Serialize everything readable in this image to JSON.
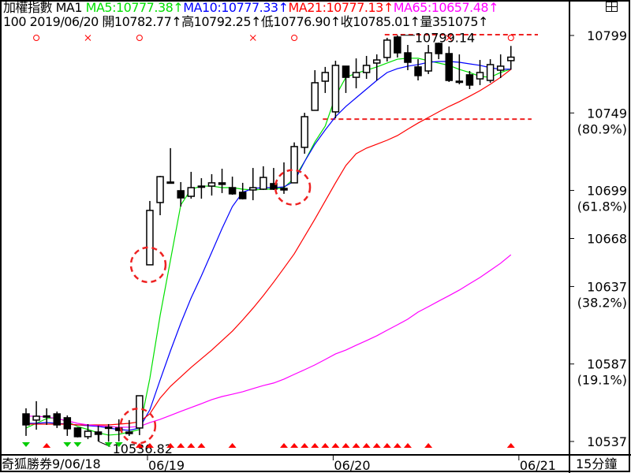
{
  "header": {
    "name": "加權指數",
    "period_label": "MA1",
    "ma5": "MA5:10777.38↑",
    "ma10": "MA10:10777.33↑",
    "ma21": "MA21:10777.13↑",
    "ma65": "MA65:10657.48↑",
    "line2": "100 2019/06/20 開10782.77↑高10792.25↑低10776.90↑收10785.01↑量351075↑"
  },
  "footer": {
    "left": "奇狐勝券9/06/18",
    "timeframe": "15分鐘"
  },
  "colors": {
    "ma5": "#00e000",
    "ma10": "#0000ff",
    "ma21": "#ff0000",
    "ma65": "#ff00ff",
    "annotation": "#ee2222",
    "up_marker": "#ff0000",
    "down_marker": "#00cc00"
  },
  "icons": {
    "window": "window-restore-icon"
  },
  "chart_data": {
    "type": "candlestick",
    "ylim": [
      10537,
      10799
    ],
    "y_ticks": [
      {
        "value": 10799,
        "label": "10799"
      },
      {
        "value": 10749,
        "label": "10749",
        "sub": "(80.9%)"
      },
      {
        "value": 10699,
        "label": "10699",
        "sub": "(61.8%)"
      },
      {
        "value": 10668,
        "label": "10668"
      },
      {
        "value": 10637,
        "label": "10637",
        "sub": "(38.2%)"
      },
      {
        "value": 10587,
        "label": "10587",
        "sub": "(19.1%)"
      },
      {
        "value": 10537,
        "label": "10537"
      }
    ],
    "x_ticks": [
      {
        "index": 13,
        "label": "06/19"
      },
      {
        "index": 31,
        "label": "06/20"
      },
      {
        "index": 49,
        "label": "06/21"
      }
    ],
    "candles": [
      [
        10554.8,
        10558.4,
        10540.6,
        10547.7
      ],
      [
        10550.8,
        10563.0,
        10544.6,
        10553.3
      ],
      [
        10553.5,
        10558.4,
        10547.7,
        10553.1
      ],
      [
        10554.8,
        10556.3,
        10545.7,
        10547.7
      ],
      [
        10552.3,
        10553.8,
        10540.6,
        10545.2
      ],
      [
        10545.7,
        10546.2,
        10539.6,
        10540.1
      ],
      [
        10540.1,
        10548.2,
        10538.5,
        10543.6
      ],
      [
        10543.1,
        10547.2,
        10537.0,
        10541.6
      ],
      [
        10546.2,
        10548.2,
        10536.82,
        10545.7
      ],
      [
        10545.7,
        10551.3,
        10537.0,
        10544.1
      ],
      [
        10543.1,
        10550.8,
        10540.6,
        10542.1
      ],
      [
        10545.7,
        10566.5,
        10541.1,
        10566.5
      ],
      [
        10651.0,
        10692.2,
        10651.0,
        10686.1
      ],
      [
        10691.2,
        10708.4,
        10683.0,
        10707.9
      ],
      [
        10704.4,
        10726.3,
        10703.4,
        10704.4
      ],
      [
        10698.8,
        10704.4,
        10688.6,
        10694.2
      ],
      [
        10695.2,
        10711.0,
        10693.7,
        10700.8
      ],
      [
        10701.3,
        10706.9,
        10693.7,
        10701.8
      ],
      [
        10701.8,
        10709.5,
        10695.7,
        10703.9
      ],
      [
        10703.9,
        10713.0,
        10697.3,
        10702.9
      ],
      [
        10700.8,
        10707.9,
        10696.2,
        10696.8
      ],
      [
        10697.8,
        10703.9,
        10693.2,
        10693.7
      ],
      [
        10699.3,
        10713.5,
        10692.7,
        10700.8
      ],
      [
        10699.8,
        10714.6,
        10699.3,
        10707.4
      ],
      [
        10703.4,
        10713.5,
        10699.3,
        10699.8
      ],
      [
        10700.3,
        10717.1,
        10696.8,
        10699.3
      ],
      [
        10703.9,
        10730.0,
        10703.9,
        10727.3
      ],
      [
        10726.8,
        10749.1,
        10722.7,
        10746.6
      ],
      [
        10750.7,
        10776.6,
        10750.7,
        10768.5
      ],
      [
        10769.5,
        10778.7,
        10761.9,
        10775.1
      ],
      [
        10749.7,
        10782.7,
        10745.6,
        10779.7
      ],
      [
        10779.2,
        10779.2,
        10761.9,
        10772.0
      ],
      [
        10772.0,
        10784.2,
        10764.9,
        10775.1
      ],
      [
        10775.1,
        10785.8,
        10771.0,
        10779.7
      ],
      [
        10781.2,
        10786.8,
        10770.0,
        10783.2
      ],
      [
        10784.8,
        10797.5,
        10782.2,
        10796.0
      ],
      [
        10798.0,
        10799.14,
        10784.8,
        10787.8
      ],
      [
        10787.8,
        10792.9,
        10776.6,
        10781.7
      ],
      [
        10778.7,
        10783.7,
        10770.0,
        10773.1
      ],
      [
        10776.1,
        10792.9,
        10774.1,
        10787.8
      ],
      [
        10793.9,
        10794.4,
        10783.7,
        10787.3
      ],
      [
        10787.3,
        10791.9,
        10769.0,
        10770.0
      ],
      [
        10769.5,
        10786.8,
        10767.5,
        10769.2
      ],
      [
        10773.6,
        10776.1,
        10764.4,
        10767.0
      ],
      [
        10771.0,
        10783.2,
        10767.0,
        10775.1
      ],
      [
        10770.0,
        10783.7,
        10768.5,
        10780.2
      ],
      [
        10776.6,
        10786.8,
        10771.5,
        10779.2
      ],
      [
        10782.77,
        10792.25,
        10776.9,
        10785.01
      ]
    ],
    "series": [
      {
        "name": "MA5",
        "color": "#00e000",
        "values": [
          10545.7,
          10548.7,
          10551.8,
          10552.3,
          10549.7,
          10546.7,
          10544.7,
          10542.6,
          10541.1,
          10541.6,
          10543.1,
          10544.7,
          10577.7,
          10618.4,
          10654.0,
          10689.6,
          10699.8,
          10701.8,
          10701.8,
          10700.8,
          10700.8,
          10699.8,
          10699.3,
          10699.8,
          10699.8,
          10700.8,
          10706.9,
          10717.6,
          10730.3,
          10740.5,
          10759.8,
          10772.0,
          10774.6,
          10776.6,
          10778.7,
          10781.2,
          10783.7,
          10784.3,
          10784.3,
          10782.7,
          10781.2,
          10779.7,
          10777.1,
          10775.1,
          10772.6,
          10772.0,
          10775.1,
          10777.38
        ]
      },
      {
        "name": "MA10",
        "color": "#0000ff",
        "values": [
          10548.7,
          10548.7,
          10549.2,
          10548.7,
          10548.2,
          10547.7,
          10547.2,
          10546.7,
          10545.7,
          10544.7,
          10544.2,
          10545.7,
          10557.4,
          10576.7,
          10595.5,
          10613.3,
          10629.6,
          10643.9,
          10659.1,
          10674.4,
          10688.6,
          10697.8,
          10700.3,
          10700.8,
          10700.8,
          10701.3,
          10704.9,
          10717.6,
          10728.8,
          10738.0,
          10746.6,
          10753.2,
          10758.8,
          10764.4,
          10770.0,
          10775.1,
          10777.6,
          10779.2,
          10780.2,
          10781.7,
          10782.2,
          10782.2,
          10781.7,
          10780.7,
          10779.7,
          10778.2,
          10777.1,
          10777.33
        ]
      },
      {
        "name": "MA21",
        "color": "#ff0000",
        "values": [
          10548.2,
          10548.2,
          10548.2,
          10548.2,
          10548.2,
          10547.7,
          10547.7,
          10547.7,
          10547.7,
          10548.2,
          10548.7,
          10549.7,
          10554.8,
          10565.0,
          10572.6,
          10578.7,
          10584.8,
          10590.4,
          10596.0,
          10602.1,
          10608.2,
          10615.4,
          10623.0,
          10631.1,
          10639.8,
          10648.9,
          10658.1,
          10669.3,
          10680.5,
          10692.2,
          10703.9,
          10715.1,
          10722.7,
          10726.3,
          10728.8,
          10731.4,
          10734.4,
          10738.5,
          10742.5,
          10746.1,
          10749.7,
          10753.2,
          10756.3,
          10759.8,
          10763.4,
          10767.5,
          10772.0,
          10777.13
        ]
      },
      {
        "name": "MA65",
        "color": "#ff00ff",
        "values": [
          10553.3,
          10553.3,
          10552.8,
          10551.8,
          10550.3,
          10548.7,
          10547.7,
          10547.2,
          10546.7,
          10546.2,
          10546.2,
          10546.7,
          10549.2,
          10551.3,
          10553.8,
          10556.4,
          10558.9,
          10561.4,
          10564.0,
          10566.0,
          10567.5,
          10569.1,
          10571.1,
          10573.1,
          10574.7,
          10577.2,
          10580.3,
          10583.3,
          10586.4,
          10589.9,
          10593.5,
          10596.0,
          10599.1,
          10602.1,
          10605.2,
          10608.8,
          10612.3,
          10615.9,
          10620.5,
          10624.0,
          10627.6,
          10631.1,
          10634.7,
          10638.8,
          10642.8,
          10647.4,
          10652.0,
          10657.48
        ]
      }
    ],
    "annotations": {
      "high_label": {
        "index": 37,
        "value": 10799.14,
        "label": "10799.14"
      },
      "low_label": {
        "index": 9,
        "value": 10536.82,
        "label": "10536.82"
      },
      "hlines": [
        {
          "value": 10799.5,
          "from_index": 36,
          "to_index": 51
        },
        {
          "value": 10745,
          "from_index": 30,
          "to_index": 50
        }
      ],
      "circles": [
        {
          "index": 13,
          "value": 10651
        },
        {
          "index": 12,
          "value": 10547
        },
        {
          "index": 27,
          "value": 10701
        }
      ],
      "signals_top": [
        {
          "index": 2,
          "mark": "o"
        },
        {
          "index": 7,
          "mark": "x"
        },
        {
          "index": 12,
          "mark": "o"
        },
        {
          "index": 23,
          "mark": "x"
        },
        {
          "index": 27,
          "mark": "o"
        },
        {
          "index": 42,
          "mark": "x"
        },
        {
          "index": 48,
          "mark": "o"
        }
      ],
      "signals_up": [
        3,
        12,
        13,
        15,
        16,
        17,
        18,
        21,
        26,
        27,
        28,
        29,
        30,
        31,
        32,
        33,
        34,
        35,
        36,
        37,
        38,
        40,
        48
      ],
      "signals_down": [
        1,
        5,
        6,
        9,
        10
      ]
    }
  }
}
